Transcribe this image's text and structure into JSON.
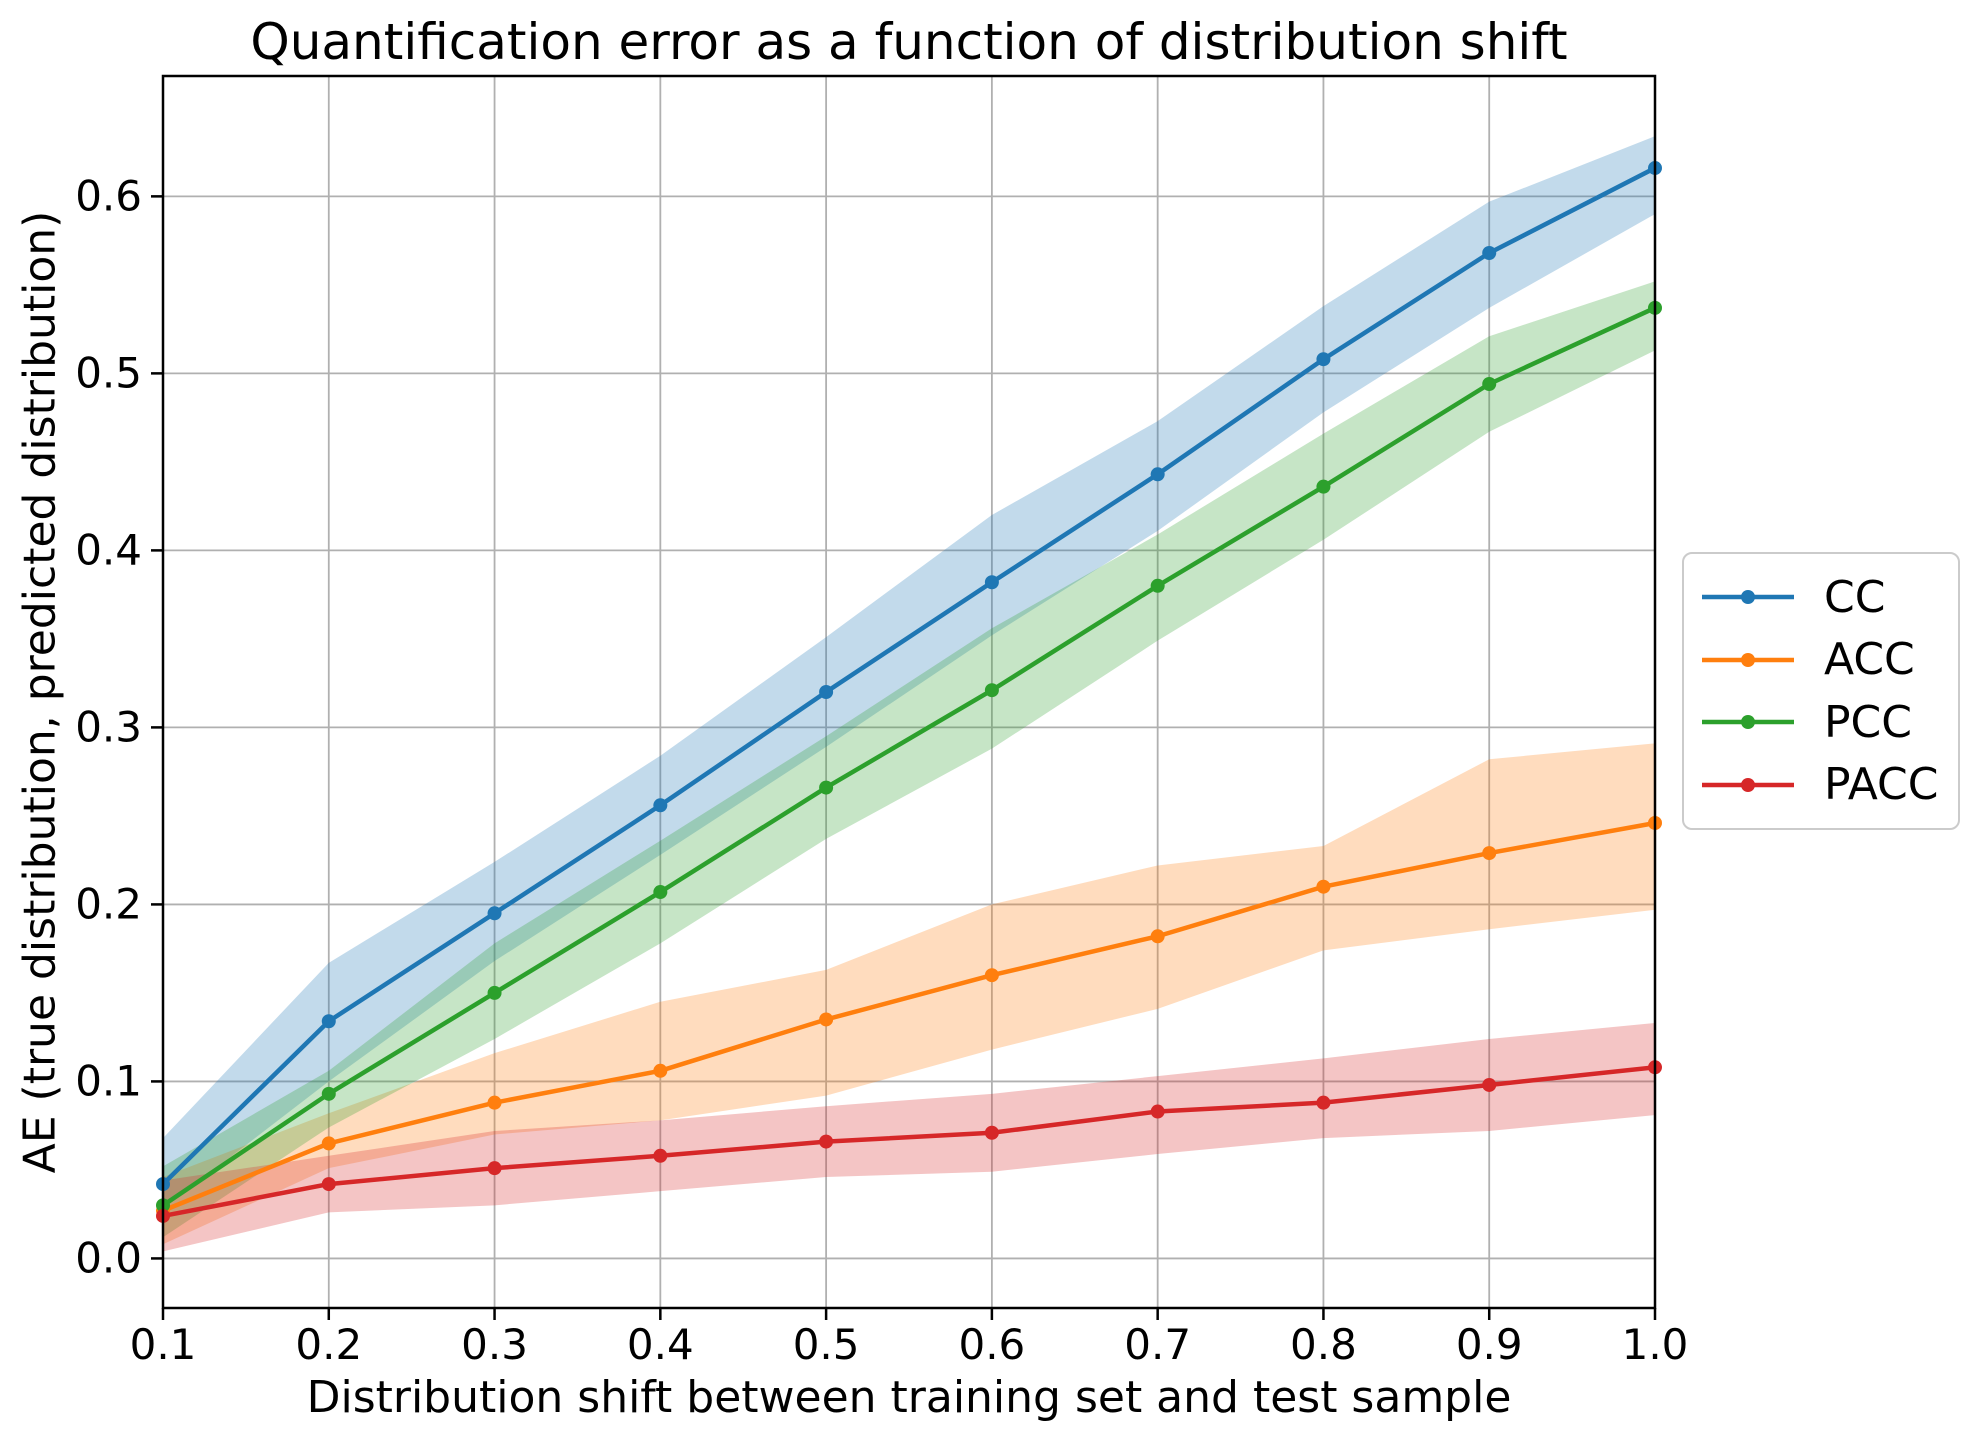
{
  "chart_data": {
    "type": "line",
    "title": "Quantification error as a function of distribution shift",
    "xlabel": "Distribution shift between training set and test sample",
    "ylabel": "AE (true distribution, predicted distribution)",
    "x": [
      0.1,
      0.2,
      0.3,
      0.4,
      0.5,
      0.6,
      0.7,
      0.8,
      0.9,
      1.0
    ],
    "x_ticks": [
      "0.1",
      "0.2",
      "0.3",
      "0.4",
      "0.5",
      "0.6",
      "0.7",
      "0.8",
      "0.9",
      "1.0"
    ],
    "y_ticks": [
      "0.0",
      "0.1",
      "0.2",
      "0.3",
      "0.4",
      "0.5",
      "0.6"
    ],
    "y_tick_values": [
      0.0,
      0.1,
      0.2,
      0.3,
      0.4,
      0.5,
      0.6
    ],
    "xlim": [
      0.1,
      1.0
    ],
    "ylim": [
      -0.028,
      0.668
    ],
    "grid": true,
    "grid_color": "#b0b0b0",
    "band_opacity": 0.27,
    "marker": "circle",
    "legend_position": "right-outside",
    "series": [
      {
        "name": "CC",
        "color": "#1f77b4",
        "values": [
          0.042,
          0.134,
          0.195,
          0.256,
          0.32,
          0.382,
          0.443,
          0.508,
          0.568,
          0.616
        ],
        "band_low": [
          0.028,
          0.1,
          0.168,
          0.228,
          0.289,
          0.352,
          0.411,
          0.478,
          0.537,
          0.59
        ],
        "band_high": [
          0.068,
          0.167,
          0.224,
          0.284,
          0.351,
          0.42,
          0.473,
          0.538,
          0.597,
          0.634
        ]
      },
      {
        "name": "ACC",
        "color": "#ff7f0e",
        "values": [
          0.027,
          0.065,
          0.088,
          0.106,
          0.135,
          0.16,
          0.182,
          0.21,
          0.229,
          0.246
        ],
        "band_low": [
          0.008,
          0.051,
          0.07,
          0.078,
          0.092,
          0.118,
          0.141,
          0.174,
          0.186,
          0.197
        ],
        "band_high": [
          0.046,
          0.082,
          0.116,
          0.145,
          0.163,
          0.2,
          0.222,
          0.233,
          0.282,
          0.291
        ]
      },
      {
        "name": "PCC",
        "color": "#2ca02c",
        "values": [
          0.03,
          0.093,
          0.15,
          0.207,
          0.266,
          0.321,
          0.38,
          0.436,
          0.494,
          0.537
        ],
        "band_low": [
          0.012,
          0.074,
          0.124,
          0.178,
          0.237,
          0.288,
          0.349,
          0.406,
          0.467,
          0.513
        ],
        "band_high": [
          0.052,
          0.106,
          0.178,
          0.236,
          0.295,
          0.356,
          0.409,
          0.466,
          0.521,
          0.552
        ]
      },
      {
        "name": "PACC",
        "color": "#d62728",
        "values": [
          0.024,
          0.042,
          0.051,
          0.058,
          0.066,
          0.071,
          0.083,
          0.088,
          0.098,
          0.108
        ],
        "band_low": [
          0.004,
          0.026,
          0.03,
          0.038,
          0.046,
          0.049,
          0.059,
          0.068,
          0.072,
          0.081
        ],
        "band_high": [
          0.044,
          0.058,
          0.072,
          0.078,
          0.086,
          0.093,
          0.103,
          0.113,
          0.124,
          0.133
        ]
      }
    ]
  },
  "legend": {
    "entries": [
      "CC",
      "ACC",
      "PCC",
      "PACC"
    ]
  }
}
